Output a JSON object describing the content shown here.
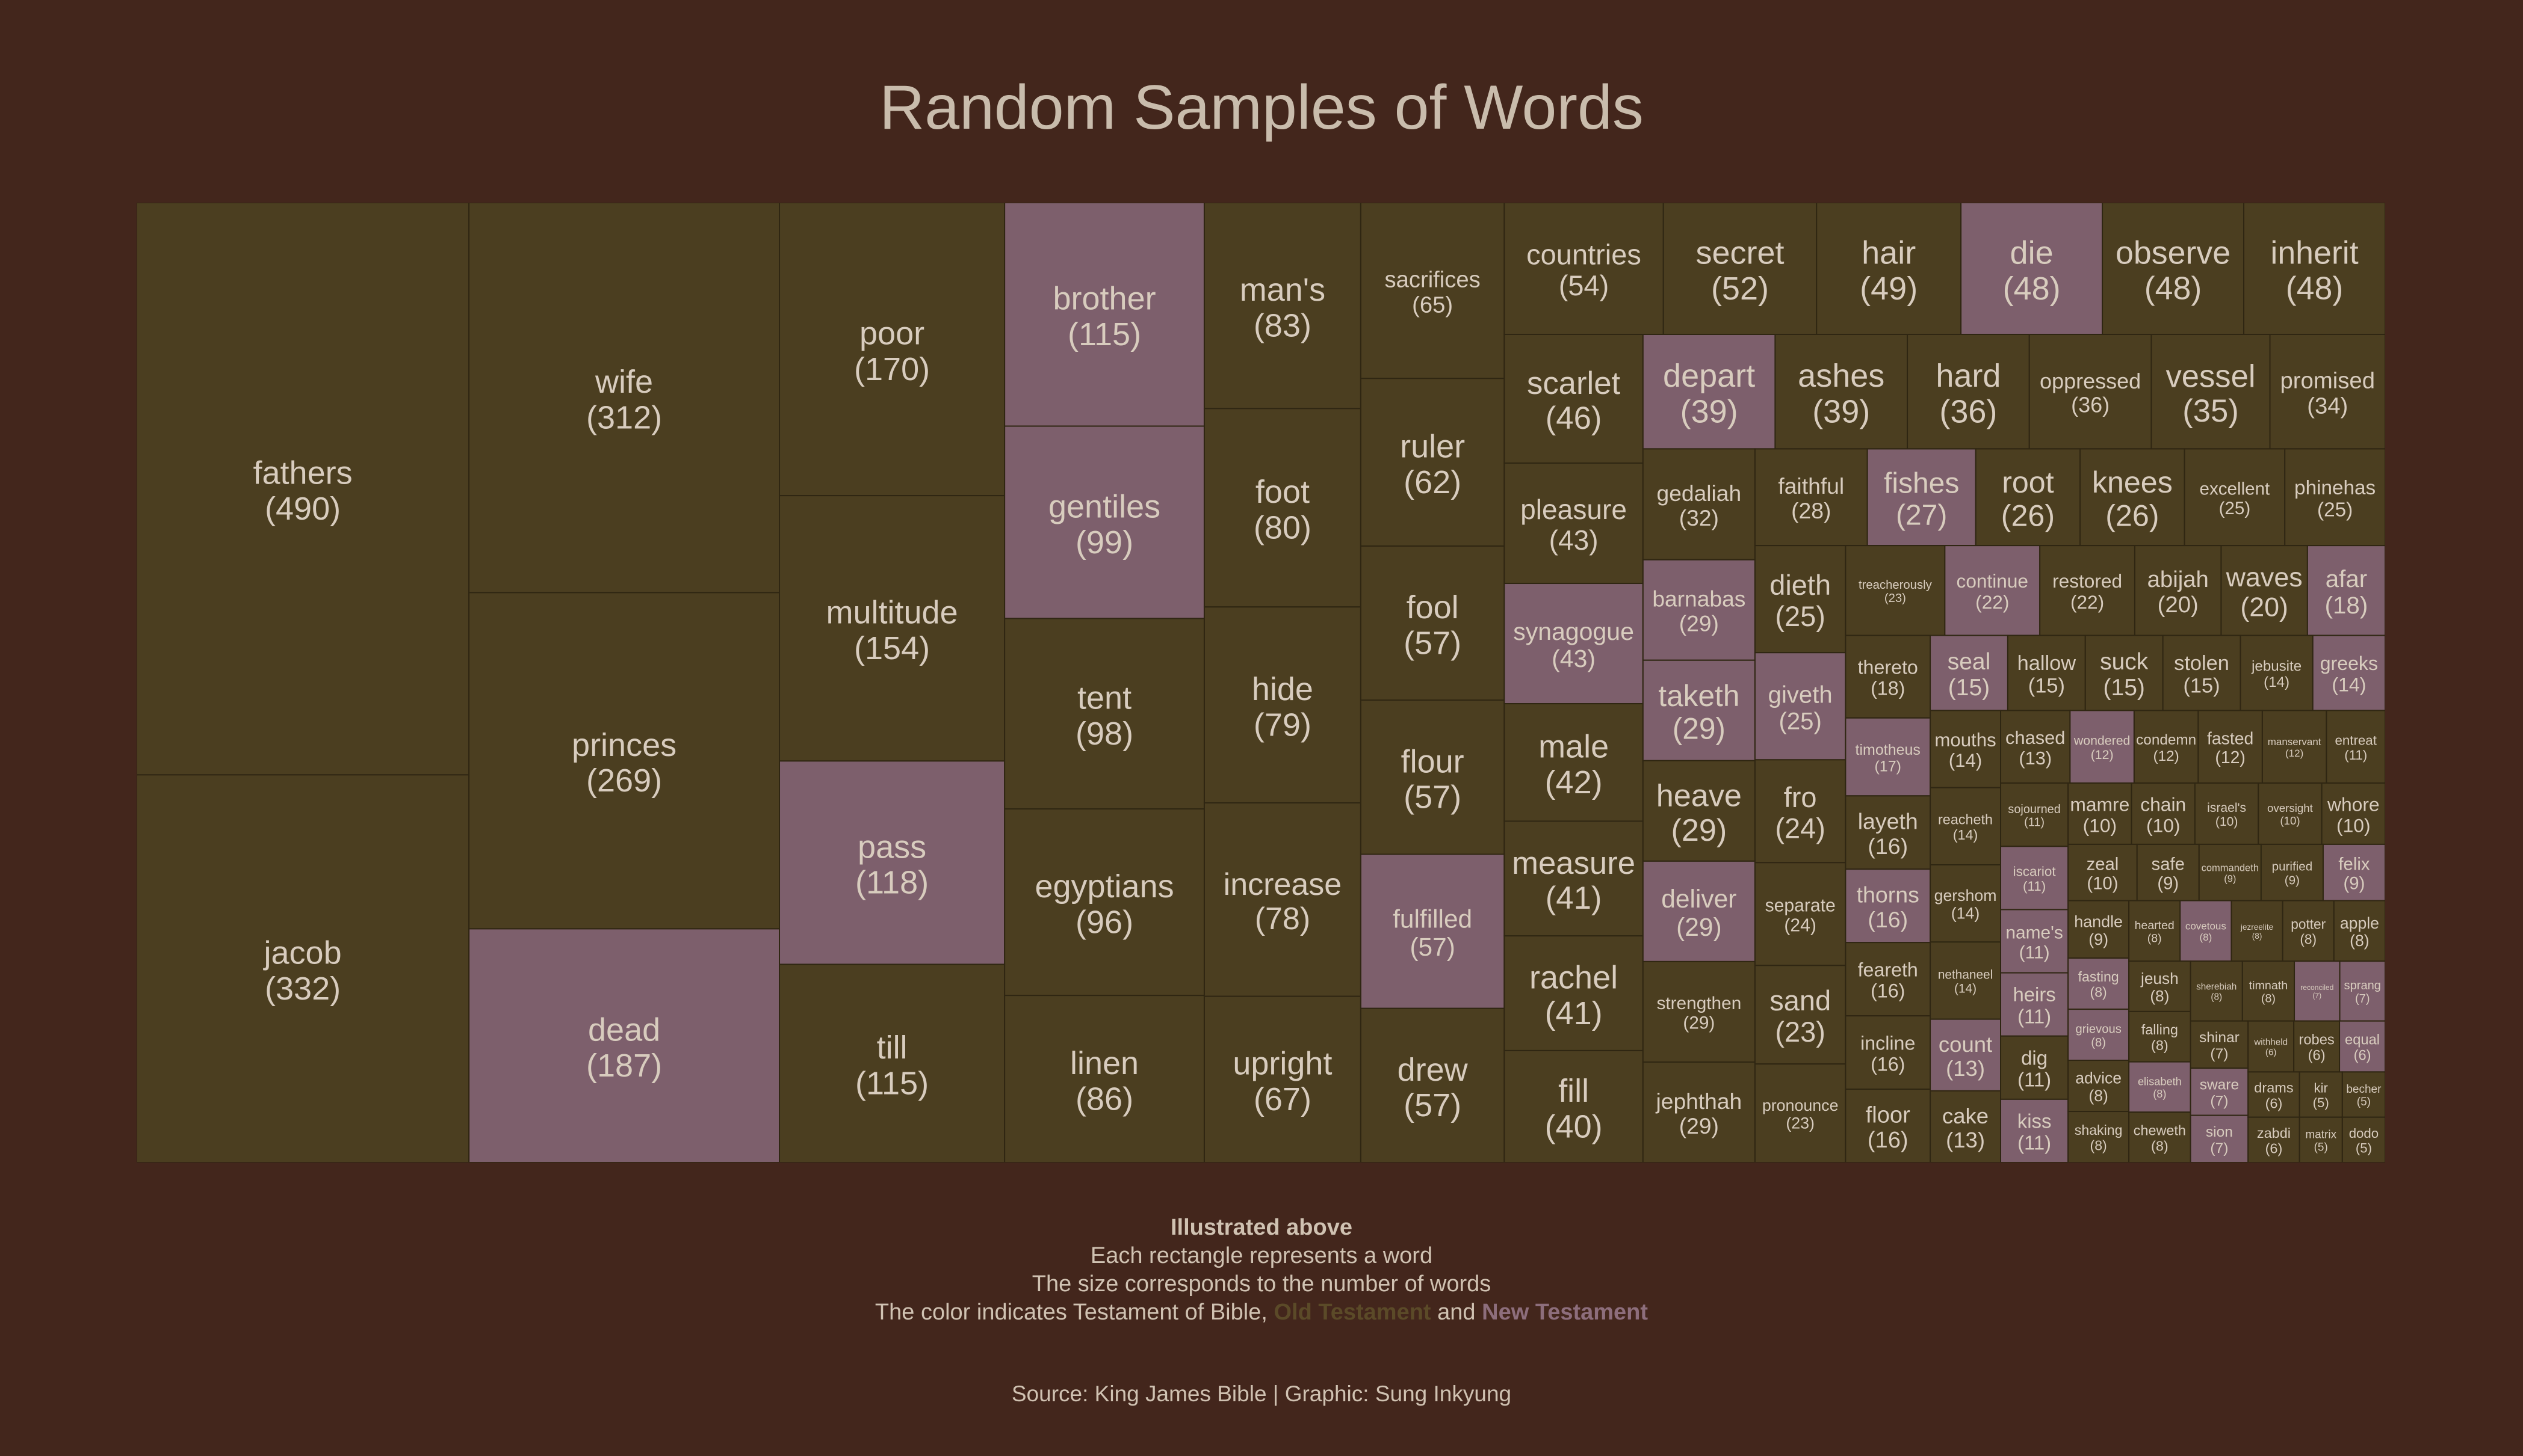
{
  "title": "Random Samples of Words",
  "caption": {
    "heading": "Illustrated above",
    "line1": "Each rectangle represents a word",
    "line2": "The size corresponds to the number of words",
    "line3_prefix": "The color indicates Testament of Bible,",
    "old_label": "Old Testament",
    "and": "and",
    "new_label": "New Testament"
  },
  "source": "Source: King James Bible | Graphic: Sung Inkyung",
  "colors": {
    "background": "#43261c",
    "old_testament": "#4b3e20",
    "new_testament": "#7d5f6c",
    "border": "#2f2612",
    "label": "#d8ccbe"
  },
  "chart_data": {
    "type": "treemap",
    "title": "Random Samples of Words",
    "legend": [
      {
        "name": "Old Testament",
        "color": "#4b3e20"
      },
      {
        "name": "New Testament",
        "color": "#7d5f6c"
      }
    ],
    "words": [
      {
        "word": "entreat",
        "count": 11,
        "testament": "old"
      },
      {
        "word": "sojourned",
        "count": 11,
        "testament": "old"
      },
      {
        "word": "sand",
        "count": 23,
        "testament": "old"
      },
      {
        "word": "safe",
        "count": 9,
        "testament": "old"
      },
      {
        "word": "upright",
        "count": 67,
        "testament": "old"
      },
      {
        "word": "man's",
        "count": 83,
        "testament": "old"
      },
      {
        "word": "fasting",
        "count": 8,
        "testament": "new"
      },
      {
        "word": "hard",
        "count": 36,
        "testament": "old"
      },
      {
        "word": "jebusite",
        "count": 14,
        "testament": "old"
      },
      {
        "word": "hair",
        "count": 49,
        "testament": "old"
      },
      {
        "word": "mamre",
        "count": 10,
        "testament": "old"
      },
      {
        "word": "die",
        "count": 48,
        "testament": "new"
      },
      {
        "word": "poor",
        "count": 170,
        "testament": "old"
      },
      {
        "word": "depart",
        "count": 39,
        "testament": "new"
      },
      {
        "word": "hide",
        "count": 79,
        "testament": "old"
      },
      {
        "word": "reconciled",
        "count": 7,
        "testament": "new"
      },
      {
        "word": "grievous",
        "count": 8,
        "testament": "new"
      },
      {
        "word": "advice",
        "count": 8,
        "testament": "old"
      },
      {
        "word": "barnabas",
        "count": 29,
        "testament": "new"
      },
      {
        "word": "fool",
        "count": 57,
        "testament": "old"
      },
      {
        "word": "kir",
        "count": 5,
        "testament": "old"
      },
      {
        "word": "withheld",
        "count": 6,
        "testament": "old"
      },
      {
        "word": "gentiles",
        "count": 99,
        "testament": "new"
      },
      {
        "word": "afar",
        "count": 18,
        "testament": "new"
      },
      {
        "word": "excellent",
        "count": 25,
        "testament": "old"
      },
      {
        "word": "layeth",
        "count": 16,
        "testament": "old"
      },
      {
        "word": "countries",
        "count": 54,
        "testament": "old"
      },
      {
        "word": "seal",
        "count": 15,
        "testament": "new"
      },
      {
        "word": "wondered",
        "count": 12,
        "testament": "new"
      },
      {
        "word": "shaking",
        "count": 8,
        "testament": "old"
      },
      {
        "word": "phinehas",
        "count": 25,
        "testament": "old"
      },
      {
        "word": "count",
        "count": 13,
        "testament": "new"
      },
      {
        "word": "sprang",
        "count": 7,
        "testament": "new"
      },
      {
        "word": "commandeth",
        "count": 9,
        "testament": "old"
      },
      {
        "word": "gedaliah",
        "count": 32,
        "testament": "old"
      },
      {
        "word": "timotheus",
        "count": 17,
        "testament": "new"
      },
      {
        "word": "fishes",
        "count": 27,
        "testament": "new"
      },
      {
        "word": "dieth",
        "count": 25,
        "testament": "old"
      },
      {
        "word": "iscariot",
        "count": 11,
        "testament": "new"
      },
      {
        "word": "abijah",
        "count": 20,
        "testament": "old"
      },
      {
        "word": "becher",
        "count": 5,
        "testament": "old"
      },
      {
        "word": "promised",
        "count": 34,
        "testament": "old"
      },
      {
        "word": "flour",
        "count": 57,
        "testament": "old"
      },
      {
        "word": "scarlet",
        "count": 46,
        "testament": "old"
      },
      {
        "word": "greeks",
        "count": 14,
        "testament": "new"
      },
      {
        "word": "jacob",
        "count": 332,
        "testament": "old"
      },
      {
        "word": "robes",
        "count": 6,
        "testament": "old"
      },
      {
        "word": "egyptians",
        "count": 96,
        "testament": "old"
      },
      {
        "word": "taketh",
        "count": 29,
        "testament": "new"
      },
      {
        "word": "pronounce",
        "count": 23,
        "testament": "old"
      },
      {
        "word": "till",
        "count": 115,
        "testament": "old"
      },
      {
        "word": "continue",
        "count": 22,
        "testament": "new"
      },
      {
        "word": "ashes",
        "count": 39,
        "testament": "old"
      },
      {
        "word": "brother",
        "count": 115,
        "testament": "new"
      },
      {
        "word": "wife",
        "count": 312,
        "testament": "old"
      },
      {
        "word": "hallow",
        "count": 15,
        "testament": "old"
      },
      {
        "word": "hearted",
        "count": 8,
        "testament": "old"
      },
      {
        "word": "fro",
        "count": 24,
        "testament": "old"
      },
      {
        "word": "separate",
        "count": 24,
        "testament": "old"
      },
      {
        "word": "shinar",
        "count": 7,
        "testament": "old"
      },
      {
        "word": "covetous",
        "count": 8,
        "testament": "new"
      },
      {
        "word": "chain",
        "count": 10,
        "testament": "old"
      },
      {
        "word": "purified",
        "count": 9,
        "testament": "old"
      },
      {
        "word": "israel's",
        "count": 10,
        "testament": "old"
      },
      {
        "word": "measure",
        "count": 41,
        "testament": "old"
      },
      {
        "word": "sacrifices",
        "count": 65,
        "testament": "old"
      },
      {
        "word": "oppressed",
        "count": 36,
        "testament": "old"
      },
      {
        "word": "increase",
        "count": 78,
        "testament": "old"
      },
      {
        "word": "mouths",
        "count": 14,
        "testament": "old"
      },
      {
        "word": "suck",
        "count": 15,
        "testament": "old"
      },
      {
        "word": "thorns",
        "count": 16,
        "testament": "new"
      },
      {
        "word": "treacherously",
        "count": 23,
        "testament": "old"
      },
      {
        "word": "condemn",
        "count": 12,
        "testament": "old"
      },
      {
        "word": "matrix",
        "count": 5,
        "testament": "old"
      },
      {
        "word": "fulfilled",
        "count": 57,
        "testament": "new"
      },
      {
        "word": "feareth",
        "count": 16,
        "testament": "old"
      },
      {
        "word": "name's",
        "count": 11,
        "testament": "new"
      },
      {
        "word": "pass",
        "count": 118,
        "testament": "new"
      },
      {
        "word": "root",
        "count": 26,
        "testament": "old"
      },
      {
        "word": "linen",
        "count": 86,
        "testament": "old"
      },
      {
        "word": "princes",
        "count": 269,
        "testament": "old"
      },
      {
        "word": "oversight",
        "count": 10,
        "testament": "old"
      },
      {
        "word": "faithful",
        "count": 28,
        "testament": "old"
      },
      {
        "word": "waves",
        "count": 20,
        "testament": "old"
      },
      {
        "word": "male",
        "count": 42,
        "testament": "old"
      },
      {
        "word": "knees",
        "count": 26,
        "testament": "old"
      },
      {
        "word": "rachel",
        "count": 41,
        "testament": "old"
      },
      {
        "word": "multitude",
        "count": 154,
        "testament": "old"
      },
      {
        "word": "jezreelite",
        "count": 8,
        "testament": "old"
      },
      {
        "word": "sware",
        "count": 7,
        "testament": "new"
      },
      {
        "word": "stolen",
        "count": 15,
        "testament": "old"
      },
      {
        "word": "whore",
        "count": 10,
        "testament": "old"
      },
      {
        "word": "fill",
        "count": 40,
        "testament": "old"
      },
      {
        "word": "reacheth",
        "count": 14,
        "testament": "old"
      },
      {
        "word": "cake",
        "count": 13,
        "testament": "old"
      },
      {
        "word": "gershom",
        "count": 14,
        "testament": "old"
      },
      {
        "word": "heirs",
        "count": 11,
        "testament": "new"
      },
      {
        "word": "incline",
        "count": 16,
        "testament": "old"
      },
      {
        "word": "potter",
        "count": 8,
        "testament": "old"
      },
      {
        "word": "pleasure",
        "count": 43,
        "testament": "old"
      },
      {
        "word": "equal",
        "count": 6,
        "testament": "new"
      },
      {
        "word": "apple",
        "count": 8,
        "testament": "old"
      },
      {
        "word": "tent",
        "count": 98,
        "testament": "old"
      },
      {
        "word": "fasted",
        "count": 12,
        "testament": "old"
      },
      {
        "word": "floor",
        "count": 16,
        "testament": "old"
      },
      {
        "word": "heave",
        "count": 29,
        "testament": "old"
      },
      {
        "word": "dead",
        "count": 187,
        "testament": "new"
      },
      {
        "word": "felix",
        "count": 9,
        "testament": "new"
      },
      {
        "word": "synagogue",
        "count": 43,
        "testament": "new"
      },
      {
        "word": "secret",
        "count": 52,
        "testament": "old"
      },
      {
        "word": "chased",
        "count": 13,
        "testament": "old"
      },
      {
        "word": "drams",
        "count": 6,
        "testament": "old"
      },
      {
        "word": "zabdi",
        "count": 6,
        "testament": "old"
      },
      {
        "word": "handle",
        "count": 9,
        "testament": "old"
      },
      {
        "word": "dodo",
        "count": 5,
        "testament": "old"
      },
      {
        "word": "deliver",
        "count": 29,
        "testament": "new"
      },
      {
        "word": "thereto",
        "count": 18,
        "testament": "old"
      },
      {
        "word": "jeush",
        "count": 8,
        "testament": "old"
      },
      {
        "word": "vessel",
        "count": 35,
        "testament": "old"
      },
      {
        "word": "strengthen",
        "count": 29,
        "testament": "old"
      },
      {
        "word": "jephthah",
        "count": 29,
        "testament": "old"
      },
      {
        "word": "nethaneel",
        "count": 14,
        "testament": "old"
      },
      {
        "word": "sion",
        "count": 7,
        "testament": "new"
      },
      {
        "word": "ruler",
        "count": 62,
        "testament": "old"
      },
      {
        "word": "foot",
        "count": 80,
        "testament": "old"
      },
      {
        "word": "falling",
        "count": 8,
        "testament": "old"
      },
      {
        "word": "giveth",
        "count": 25,
        "testament": "new"
      },
      {
        "word": "restored",
        "count": 22,
        "testament": "old"
      },
      {
        "word": "observe",
        "count": 48,
        "testament": "old"
      },
      {
        "word": "elisabeth",
        "count": 8,
        "testament": "new"
      },
      {
        "word": "drew",
        "count": 57,
        "testament": "old"
      },
      {
        "word": "cheweth",
        "count": 8,
        "testament": "old"
      },
      {
        "word": "fathers",
        "count": 490,
        "testament": "old"
      },
      {
        "word": "manservant",
        "count": 12,
        "testament": "old"
      },
      {
        "word": "sherebiah",
        "count": 8,
        "testament": "old"
      },
      {
        "word": "timnath",
        "count": 8,
        "testament": "old"
      },
      {
        "word": "inherit",
        "count": 48,
        "testament": "old"
      },
      {
        "word": "zeal",
        "count": 10,
        "testament": "old"
      },
      {
        "word": "dig",
        "count": 11,
        "testament": "old"
      },
      {
        "word": "kiss",
        "count": 11,
        "testament": "new"
      }
    ]
  }
}
